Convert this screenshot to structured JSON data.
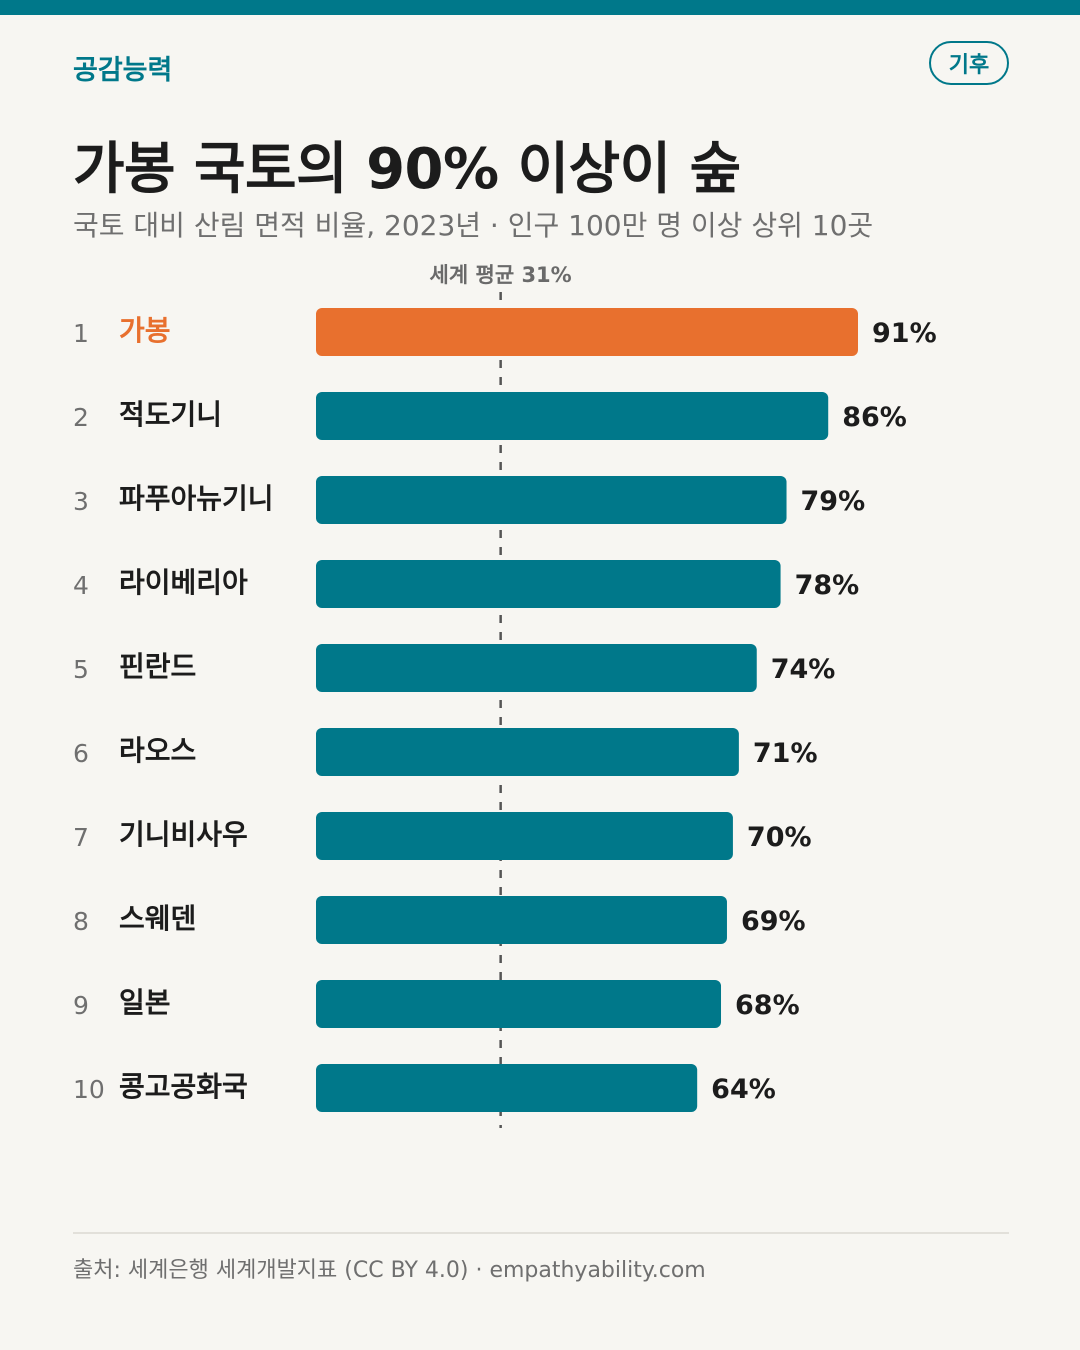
{
  "header": {
    "brand": "공감능력",
    "tag": "기후"
  },
  "title": "가봉 국토의 90% 이상이 숲",
  "subtitle": "국토 대비 산림 면적 비율, 2023년 · 인구 100만 명 이상 상위 10곳",
  "footer": {
    "source": "출처: 세계은행 세계개발지표 (CC BY 4.0) · empathyability.com"
  },
  "colors": {
    "accent": "#00788a",
    "highlight": "#e8702e",
    "bar": "#00788a",
    "text": "#1c1c1c",
    "muted": "#6f6f6f"
  },
  "chart_data": {
    "type": "bar",
    "orientation": "horizontal",
    "categories": [
      "가봉",
      "적도기니",
      "파푸아뉴기니",
      "라이베리아",
      "핀란드",
      "라오스",
      "기니비사우",
      "스웨덴",
      "일본",
      "콩고공화국"
    ],
    "ranks": [
      "1",
      "2",
      "3",
      "4",
      "5",
      "6",
      "7",
      "8",
      "9",
      "10"
    ],
    "values": [
      91,
      86,
      79,
      78,
      74,
      71,
      70,
      69,
      68,
      64
    ],
    "value_labels": [
      "91%",
      "86%",
      "79%",
      "78%",
      "74%",
      "71%",
      "70%",
      "69%",
      "68%",
      "64%"
    ],
    "highlight_index": 0,
    "reference_line": {
      "value": 31,
      "label": "세계 평균 31%"
    },
    "unit": "%"
  }
}
